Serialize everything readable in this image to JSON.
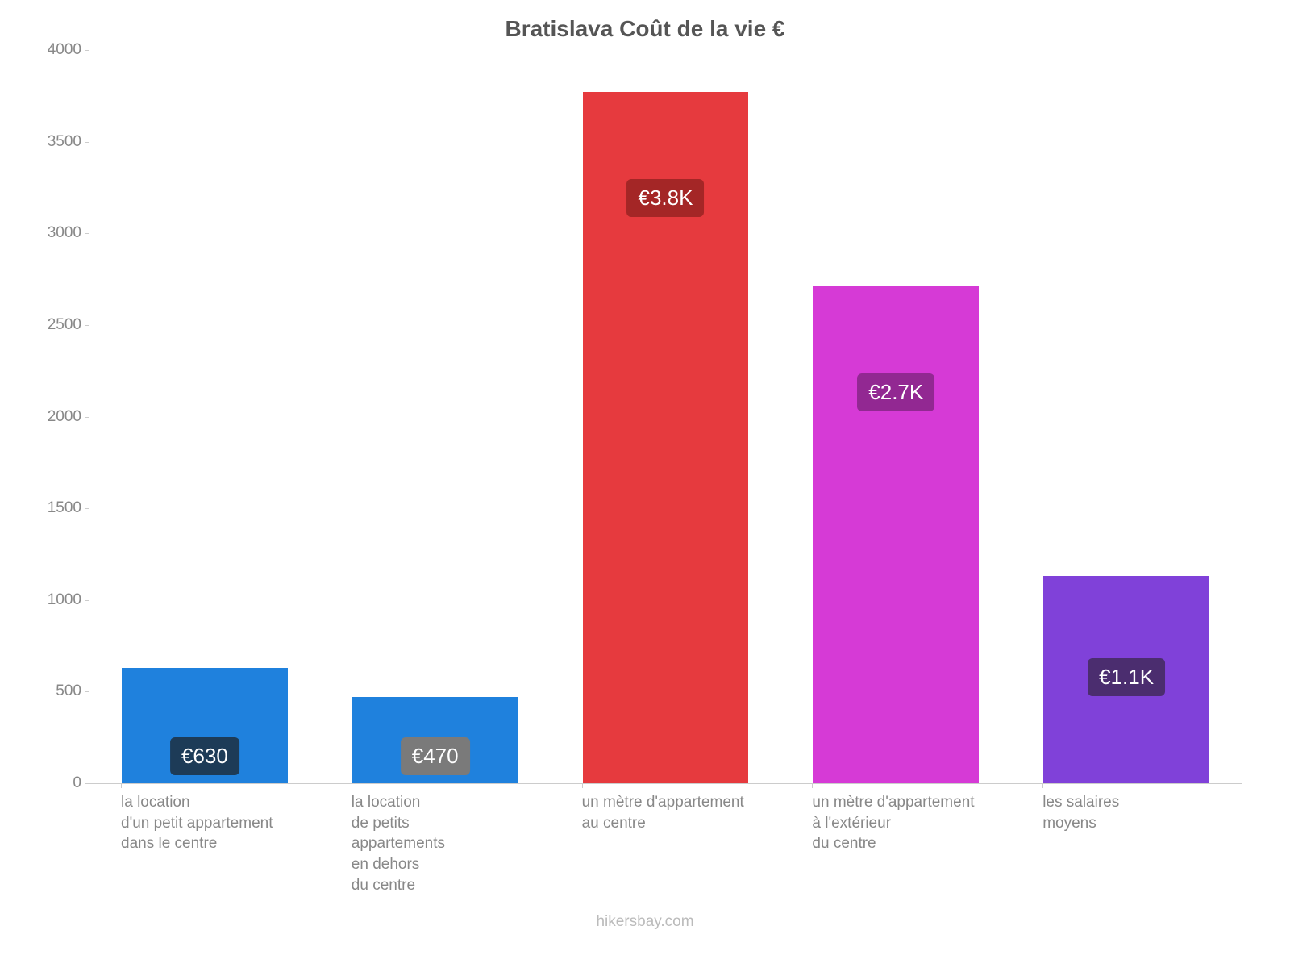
{
  "chart": {
    "type": "bar",
    "title": "Bratislava Coût de la vie €",
    "title_fontsize": 28,
    "title_color": "#555555",
    "background_color": "#ffffff",
    "axis_color": "#cccccc",
    "tick_label_color": "#888888",
    "tick_label_fontsize": 19,
    "xlabel_fontsize": 19,
    "ylim": [
      0,
      4000
    ],
    "ytick_step": 500,
    "yticks": [
      0,
      500,
      1000,
      1500,
      2000,
      2500,
      3000,
      3500,
      4000
    ],
    "bar_width_ratio": 0.72,
    "bars": [
      {
        "category": "la location\nd'un petit appartement\ndans le centre",
        "value": 630,
        "value_label": "€630",
        "bar_color": "#1f81dd",
        "badge_bg": "#1d3b57",
        "badge_text_color": "#ffffff"
      },
      {
        "category": "la location\nde petits\nappartements\nen dehors\ndu centre",
        "value": 470,
        "value_label": "€470",
        "bar_color": "#1f81dd",
        "badge_bg": "#7a7a7a",
        "badge_text_color": "#ffffff"
      },
      {
        "category": "un mètre d'appartement\nau centre",
        "value": 3770,
        "value_label": "€3.8K",
        "bar_color": "#e63a3e",
        "badge_bg": "#a42626",
        "badge_text_color": "#ffffff"
      },
      {
        "category": "un mètre d'appartement\nà l'extérieur\ndu centre",
        "value": 2710,
        "value_label": "€2.7K",
        "bar_color": "#d63ad6",
        "badge_bg": "#922892",
        "badge_text_color": "#ffffff"
      },
      {
        "category": "les salaires\nmoyens",
        "value": 1130,
        "value_label": "€1.1K",
        "bar_color": "#8041d9",
        "badge_bg": "#4b2d6f",
        "badge_text_color": "#ffffff"
      }
    ],
    "badge_fontsize": 26,
    "attribution": "hikersbay.com",
    "attribution_fontsize": 19,
    "attribution_color": "#bbbbbb"
  }
}
